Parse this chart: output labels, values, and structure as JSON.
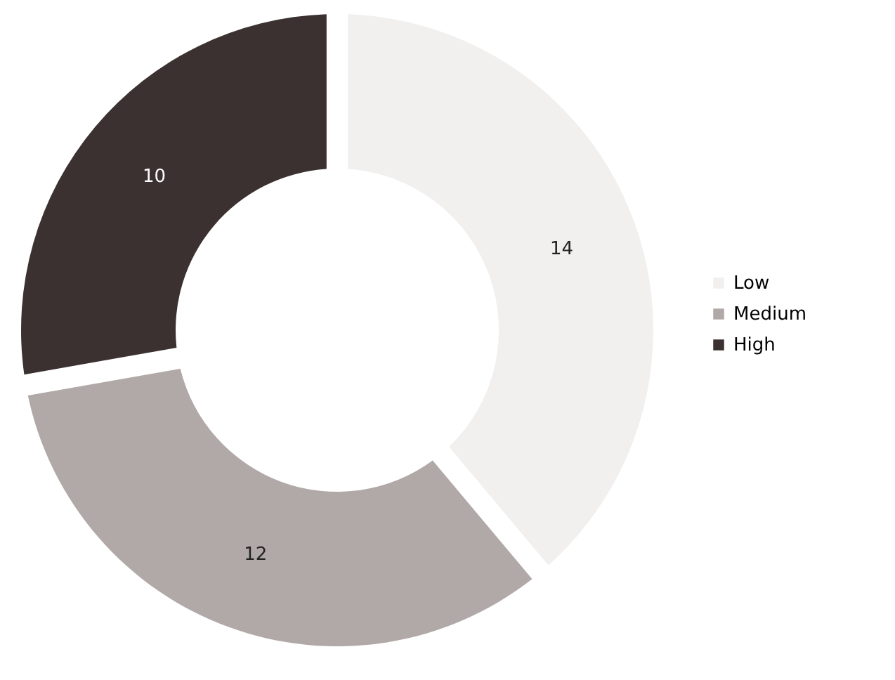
{
  "chart_data": {
    "type": "donut",
    "categories": [
      "Low",
      "Medium",
      "High"
    ],
    "values": [
      14,
      12,
      10
    ],
    "colors": [
      "#f2f0ef",
      "#b1a9a7",
      "#3b3131"
    ],
    "data_labels": true,
    "legend": "right"
  }
}
